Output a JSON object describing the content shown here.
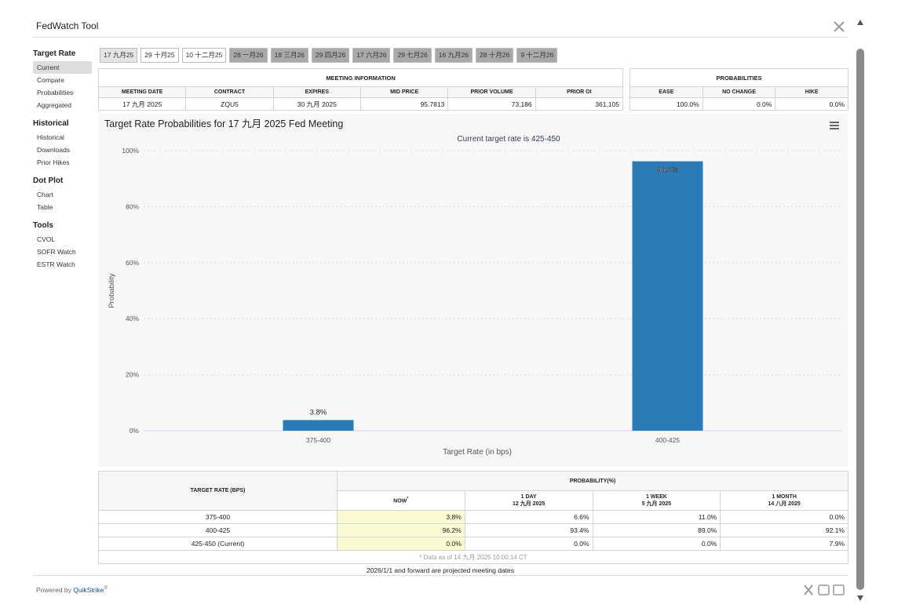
{
  "header": {
    "title": "FedWatch Tool"
  },
  "sidebar": [
    {
      "heading": "Target Rate",
      "items": [
        "Current",
        "Compare",
        "Probabilities",
        "Aggregated"
      ]
    },
    {
      "heading": "Historical",
      "items": [
        "Historical",
        "Downloads",
        "Prior Hikes"
      ]
    },
    {
      "heading": "Dot Plot",
      "items": [
        "Chart",
        "Table"
      ]
    },
    {
      "heading": "Tools",
      "items": [
        "CVOL",
        "SOFR Watch",
        "ESTR Watch"
      ]
    }
  ],
  "tabs": [
    "17 九月25",
    "29 十月25",
    "10 十二月25",
    "28 一月26",
    "18 三月26",
    "29 四月26",
    "17 六月26",
    "29 七月26",
    "16 九月26",
    "28 十月26",
    "9 十二月26"
  ],
  "meeting_info": {
    "title": "MEETING INFORMATION",
    "columns": [
      "MEETING DATE",
      "CONTRACT",
      "EXPIRES",
      "MID PRICE",
      "PRIOR VOLUME",
      "PRIOR OI"
    ],
    "row": [
      "17 九月 2025",
      "ZQU5",
      "30 九月 2025",
      "95.7813",
      "73,186",
      "361,105"
    ]
  },
  "probabilities": {
    "title": "PROBABILITIES",
    "columns": [
      "EASE",
      "NO CHANGE",
      "HIKE"
    ],
    "row": [
      "100.0%",
      "0.0%",
      "0.0%"
    ]
  },
  "chart_data": {
    "type": "bar",
    "title": "Target Rate Probabilities for 17 九月 2025 Fed Meeting",
    "subtitle": "Current target rate is 425-450",
    "x_label": "Target Rate (in bps)",
    "y_label": "Probability",
    "categories": [
      "375-400",
      "400-425"
    ],
    "values": [
      3.8,
      96.2
    ],
    "value_labels": [
      "3.8%",
      "96.2%"
    ],
    "color": "#2b7bb9",
    "ylim": [
      0,
      100
    ],
    "yticks": [
      {
        "value": 0,
        "label": "0%"
      },
      {
        "value": 20,
        "label": "20%"
      },
      {
        "value": 40,
        "label": "40%"
      },
      {
        "value": 60,
        "label": "60%"
      },
      {
        "value": 80,
        "label": "80%"
      },
      {
        "value": 100,
        "label": "100%"
      }
    ],
    "grid": true
  },
  "probability_table": {
    "row_header": "TARGET RATE (BPS)",
    "group_header": "PROBABILITY(%)",
    "columns": [
      {
        "label": "NOW",
        "mark": "*"
      },
      {
        "label": "1 DAY",
        "date": "12 九月 2025"
      },
      {
        "label": "1 WEEK",
        "date": "5 九月 2025"
      },
      {
        "label": "1 MONTH",
        "date": "14 八月 2025"
      }
    ],
    "rows": [
      {
        "rate": "375-400",
        "values": [
          "3.8%",
          "6.6%",
          "11.0%",
          "0.0%"
        ]
      },
      {
        "rate": "400-425",
        "values": [
          "96.2%",
          "93.4%",
          "89.0%",
          "92.1%"
        ]
      },
      {
        "rate": "425-450 (Current)",
        "values": [
          "0.0%",
          "0.0%",
          "0.0%",
          "7.9%"
        ]
      }
    ],
    "note": "* Data as of 14 九月 2025 10:00:14 CT"
  },
  "projection_note": "2026/1/1 and forward are projected meeting dates",
  "footer": {
    "powered_by": "Powered by",
    "brand": "QuikStrike",
    "mark": "®"
  }
}
